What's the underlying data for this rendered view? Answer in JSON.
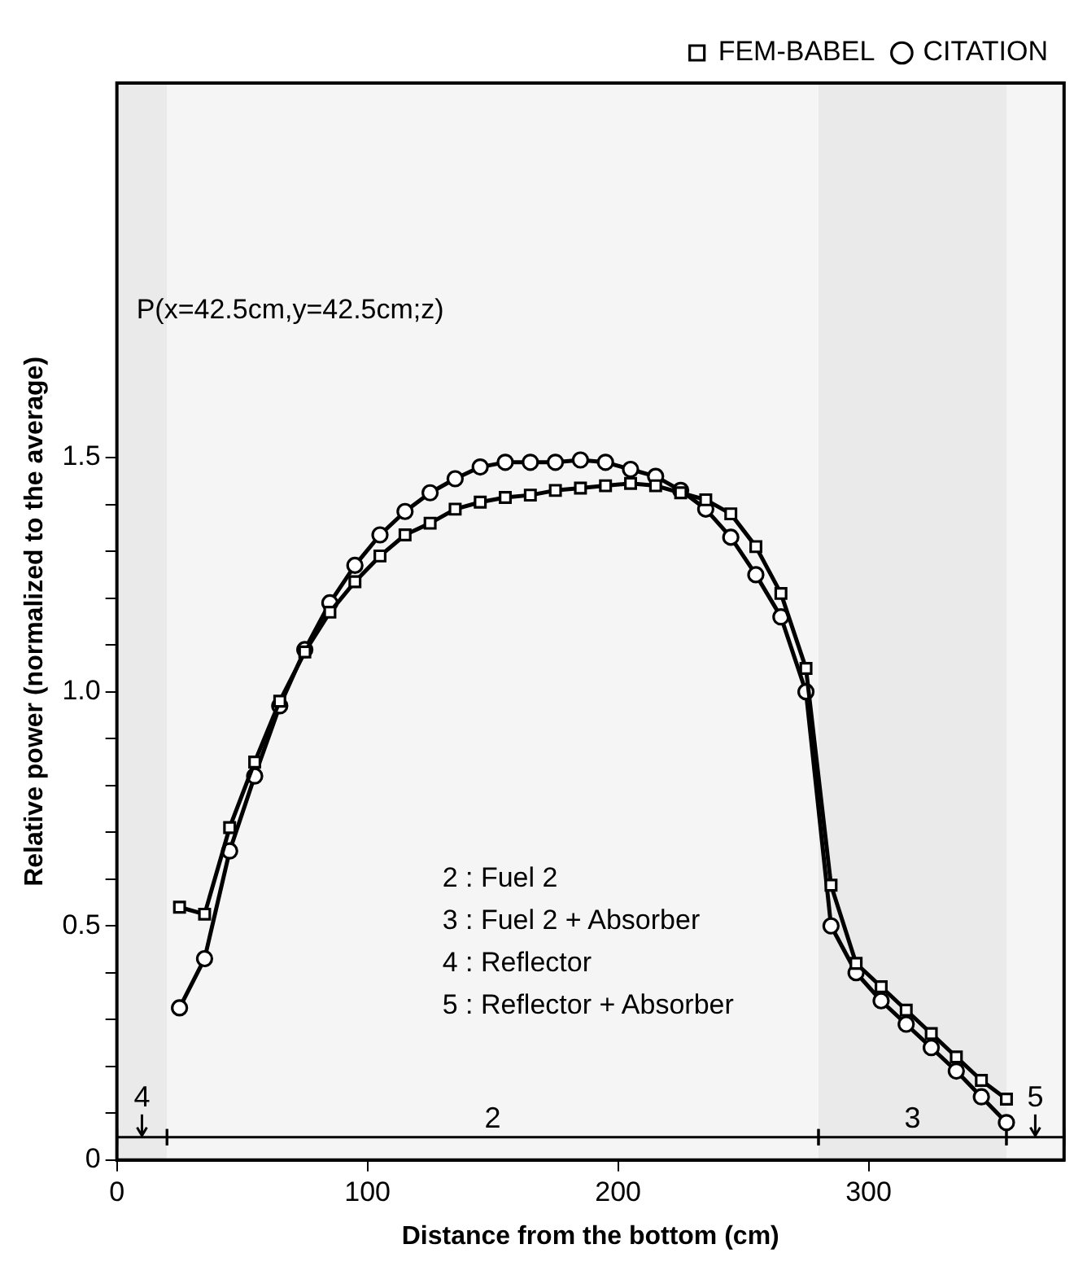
{
  "chart_data": {
    "type": "line",
    "xlabel": "Distance from the bottom (cm)",
    "ylabel": "Relative power (normalized to the average)",
    "x": [
      25,
      35,
      45,
      55,
      65,
      75,
      85,
      95,
      105,
      115,
      125,
      135,
      145,
      155,
      165,
      175,
      185,
      195,
      205,
      215,
      225,
      235,
      245,
      255,
      265,
      275,
      285,
      295,
      305,
      315,
      325,
      335,
      345,
      355
    ],
    "series": [
      {
        "name": "FEM-BABEL",
        "color": "#000000",
        "marker": "square",
        "values": [
          0.54,
          0.525,
          0.71,
          0.85,
          0.98,
          1.085,
          1.17,
          1.235,
          1.29,
          1.335,
          1.36,
          1.39,
          1.405,
          1.415,
          1.42,
          1.43,
          1.435,
          1.44,
          1.445,
          1.44,
          1.425,
          1.41,
          1.38,
          1.31,
          1.21,
          1.05,
          0.587,
          0.42,
          0.37,
          0.32,
          0.27,
          0.22,
          0.17,
          0.13
        ]
      },
      {
        "name": "CITATION",
        "color": "#000000",
        "marker": "circle",
        "values": [
          0.325,
          0.43,
          0.66,
          0.82,
          0.97,
          1.09,
          1.19,
          1.27,
          1.335,
          1.385,
          1.425,
          1.455,
          1.48,
          1.49,
          1.49,
          1.49,
          1.495,
          1.49,
          1.475,
          1.46,
          1.43,
          1.39,
          1.33,
          1.25,
          1.16,
          1.0,
          0.5,
          0.4,
          0.34,
          0.29,
          0.24,
          0.19,
          0.135,
          0.08
        ]
      }
    ],
    "xlim": [
      0,
      378
    ],
    "xticks": [
      0,
      100,
      200,
      300
    ],
    "ylim": [
      0,
      2.3
    ],
    "yticks": [
      0,
      {
        "value": 0.1,
        "label": null
      },
      {
        "value": 0.2,
        "label": null
      },
      {
        "value": 0.3,
        "label": null
      },
      {
        "value": 0.4,
        "label": null
      },
      {
        "value": 0.5,
        "label": "0.5"
      },
      {
        "value": 0.6,
        "label": null
      },
      {
        "value": 0.7,
        "label": null
      },
      {
        "value": 0.8,
        "label": null
      },
      {
        "value": 0.9,
        "label": null
      },
      {
        "value": 1,
        "label": "1.0"
      },
      {
        "value": 1.1,
        "label": null
      },
      {
        "value": 1.2,
        "label": null
      },
      {
        "value": 1.3,
        "label": null
      },
      {
        "value": 1.4,
        "label": null
      },
      {
        "value": 1.5,
        "label": "1.5"
      }
    ],
    "bands": [
      {
        "axis": "x",
        "from": 0,
        "to": 20,
        "label": "4",
        "color": "#eaeaea"
      },
      {
        "axis": "x",
        "from": 20,
        "to": 280,
        "label": "2",
        "color": "#f5f5f5"
      },
      {
        "axis": "x",
        "from": 280,
        "to": 355,
        "label": "3",
        "color": "#eaeaea"
      },
      {
        "axis": "x",
        "from": 355,
        "to": 378,
        "label": "5",
        "color": "#f5f5f5"
      }
    ],
    "annotations": [
      "P(x=42.5cm,y=42.5cm;z)",
      "2 : Fuel 2",
      "3 : Fuel 2 + Absorber",
      "4 : Reflector",
      "5 : Reflector + Absorber"
    ],
    "legend": "top right",
    "grid": false,
    "line_style": "solid"
  }
}
